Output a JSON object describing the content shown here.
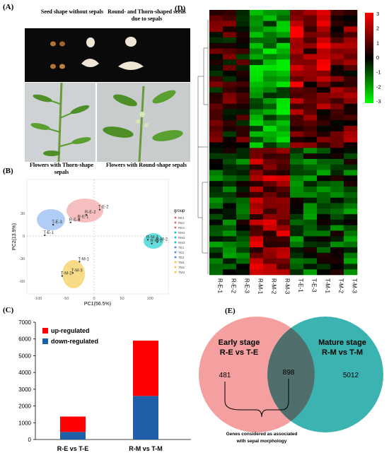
{
  "panels": {
    "a": {
      "label": "(A)",
      "caption_left": "Seed shape without sepals",
      "caption_right": "Round- and Thorn-shaped seeds due to sepals",
      "photo_left_caption": "Flowers with Thorn-shape sepals",
      "photo_right_caption": "Flowers with Round-shape sepals"
    },
    "b": {
      "label": "(B)",
      "xlabel": "PC1(56.5%)",
      "ylabel": "PC2(13.9%)",
      "xticks": [
        "-100",
        "-50",
        "0",
        "50",
        "100"
      ],
      "yticks": [
        "30",
        "0",
        "-30",
        "-60"
      ],
      "legend_title": "group",
      "legend_items": [
        "RE1",
        "RE2",
        "RE3",
        "RM1",
        "RM2",
        "RM3",
        "TE1",
        "TE2",
        "TE3",
        "TM1",
        "TM2",
        "TM3"
      ],
      "points": [
        {
          "label": "T-E-2",
          "x": 10,
          "y": 35
        },
        {
          "label": "R-E-2",
          "x": -14,
          "y": 28
        },
        {
          "label": "R-E-1",
          "x": -27,
          "y": 22
        },
        {
          "label": "R-E-3",
          "x": -42,
          "y": 18
        },
        {
          "label": "T-E-3",
          "x": -73,
          "y": 15
        },
        {
          "label": "T-E-1",
          "x": -88,
          "y": 1
        },
        {
          "label": "R-M-3",
          "x": 96,
          "y": -5
        },
        {
          "label": "R-M-2",
          "x": 113,
          "y": -8
        },
        {
          "label": "R-M-1",
          "x": 103,
          "y": -10
        },
        {
          "label": "T-M-1",
          "x": -26,
          "y": -34
        },
        {
          "label": "T-M-3",
          "x": -38,
          "y": -49
        },
        {
          "label": "T-M-2",
          "x": -57,
          "y": -53
        }
      ],
      "colors": {
        "re": "#e57373",
        "te": "#5b8def",
        "rm": "#14c8c8",
        "tm": "#f5c842"
      }
    },
    "c": {
      "label": "(C)",
      "legend_up": "up-regulated",
      "legend_down": "down-regulated",
      "yticks": [
        "0",
        "1000",
        "2000",
        "3000",
        "4000",
        "5000",
        "6000",
        "7000"
      ],
      "ymax": 7000,
      "colors": {
        "up": "#ff0000",
        "down": "#1f5fa8"
      }
    },
    "d": {
      "label": "(D)",
      "columns": [
        "R-E-1",
        "R-E-2",
        "R-E-3",
        "R-M-1",
        "R-M-2",
        "R-M-3",
        "T-E-1",
        "T-E-3",
        "T-M-1",
        "T-M-2",
        "T-M-3"
      ],
      "scale_ticks": [
        "3",
        "2",
        "1",
        "0",
        "-1",
        "-2",
        "-3"
      ]
    },
    "e": {
      "label": "(E)",
      "left_title_1": "Early stage",
      "left_title_2": "R-E vs T-E",
      "right_title_1": "Mature stage",
      "right_title_2": "R-M vs T-M",
      "left_only": "481",
      "overlap": "898",
      "right_only": "5012",
      "note_1": "Genes considered as associated",
      "note_2": "with sepal morphology",
      "colors": {
        "left": "#f4a0a0",
        "right": "#3bb3b0"
      }
    }
  },
  "chart_data": {
    "type": "bar",
    "stacked": true,
    "categories": [
      "R-E vs T-E",
      "R-M vs T-M"
    ],
    "series": [
      {
        "name": "down-regulated",
        "values": [
          450,
          2600
        ]
      },
      {
        "name": "up-regulated",
        "values": [
          920,
          3300
        ]
      }
    ],
    "ylim": [
      0,
      7000
    ],
    "legend": "top-left"
  }
}
